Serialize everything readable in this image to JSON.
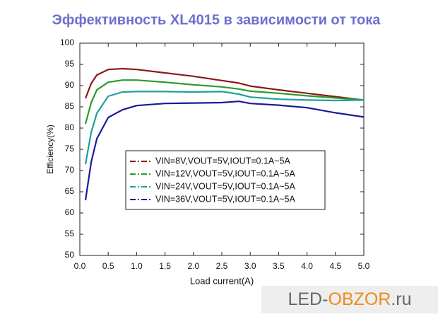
{
  "chart_data": {
    "type": "line",
    "title": "Эффективность XL4015 в зависимости от тока",
    "x_label": "Load current(A)",
    "y_label": "Efficiency(%)",
    "x": [
      0.1,
      0.2,
      0.3,
      0.5,
      0.75,
      1.0,
      1.5,
      2.0,
      2.5,
      2.8,
      3.0,
      3.5,
      4.0,
      4.5,
      5.0
    ],
    "series": [
      {
        "name": "VIN=8V,VOUT=5V,IOUT=0.1A~5A",
        "color": "#8b1a1a",
        "values": [
          87,
          90.5,
          92.5,
          93.8,
          94,
          93.8,
          93,
          92.2,
          91.2,
          90.6,
          89.9,
          89,
          88.2,
          87.4,
          86.6
        ]
      },
      {
        "name": "VIN=12V,VOUT=5V,IOUT=0.1A~5A",
        "color": "#2a9a2a",
        "values": [
          81,
          86,
          89,
          90.8,
          91.3,
          91.3,
          90.8,
          90.2,
          89.7,
          89.2,
          88.7,
          88.2,
          87.6,
          87.1,
          86.6
        ]
      },
      {
        "name": "VIN=24V,VOUT=5V,IOUT=0.1A~5A",
        "color": "#1fa0a0",
        "values": [
          71.5,
          79,
          83.5,
          87.5,
          88.5,
          88.6,
          88.6,
          88.5,
          88.6,
          88,
          87.3,
          86.8,
          86.6,
          86.5,
          86.6
        ]
      },
      {
        "name": "VIN=36V,VOUT=5V,IOUT=0.1A~5A",
        "color": "#1a1a9a",
        "values": [
          63,
          72,
          77.5,
          82.5,
          84.3,
          85.3,
          85.8,
          85.9,
          86,
          86.3,
          85.8,
          85.4,
          84.8,
          83.6,
          82.6
        ]
      }
    ],
    "xlim": [
      0,
      5
    ],
    "ylim": [
      50,
      100
    ],
    "xticks": [
      {
        "value": 0,
        "label": "0.0"
      },
      {
        "value": 0.5,
        "label": "0.5"
      },
      {
        "value": 1,
        "label": "1.0"
      },
      {
        "value": 1.5,
        "label": "1.5"
      },
      {
        "value": 2,
        "label": "2.0"
      },
      {
        "value": 2.5,
        "label": "2.5"
      },
      {
        "value": 3,
        "label": "3.0"
      },
      {
        "value": 3.5,
        "label": "3.5"
      },
      {
        "value": 4,
        "label": "4.0"
      },
      {
        "value": 4.5,
        "label": "4.5"
      },
      {
        "value": 5,
        "label": "5.0"
      }
    ],
    "yticks": [
      50,
      55,
      60,
      65,
      70,
      75,
      80,
      85,
      90,
      95,
      100
    ],
    "grid": false
  },
  "watermark": {
    "part1": "LED-",
    "part2": "OBZOR",
    "part3": ".ru"
  }
}
